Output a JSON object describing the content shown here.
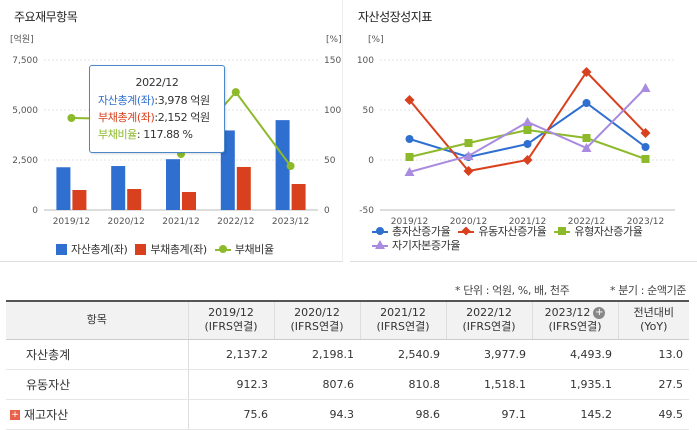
{
  "left_panel": {
    "title": "주요재무항목",
    "y_left_unit": "[억원]",
    "y_right_unit": "[%]",
    "tooltip": {
      "title": "2022/12",
      "rows": [
        {
          "label": "자산총계(좌)",
          "value": ":3,978 억원",
          "color": "#2f6fd0"
        },
        {
          "label": "부채총계(좌)",
          "value": ":2,152 억원",
          "color": "#d9411e"
        },
        {
          "label": "부채비율",
          "value": ": 117.88 %",
          "color": "#8dba2a"
        }
      ]
    },
    "legend": [
      "자산총계(좌)",
      "부채총계(좌)",
      "부채비율"
    ]
  },
  "right_panel": {
    "title": "자산성장성지표",
    "y_unit": "[%]",
    "legend": [
      "총자산증가율",
      "유동자산증가율",
      "유형자산증가율",
      "자기자본증가율"
    ]
  },
  "chart_data": [
    {
      "type": "bar",
      "title": "주요재무항목",
      "categories": [
        "2019/12",
        "2020/12",
        "2021/12",
        "2022/12",
        "2023/12"
      ],
      "ylim_left": [
        0,
        7500
      ],
      "yticks_left": [
        "7,500",
        "5,000",
        "2,500",
        "0"
      ],
      "ylim_right": [
        0,
        150
      ],
      "yticks_right": [
        "150",
        "100",
        "50",
        "0"
      ],
      "series": [
        {
          "name": "자산총계(좌)",
          "kind": "bar",
          "axis": "left",
          "color": "#2f6fd0",
          "values": [
            2137.2,
            2198.1,
            2540.9,
            3977.9,
            4493.9
          ]
        },
        {
          "name": "부채총계(좌)",
          "kind": "bar",
          "axis": "left",
          "color": "#d9411e",
          "values": [
            1000,
            1050,
            900,
            2152,
            1300
          ]
        },
        {
          "name": "부채비율",
          "kind": "line",
          "axis": "right",
          "color": "#8dba2a",
          "values": [
            92,
            91,
            56,
            117.88,
            44
          ]
        }
      ],
      "grid": true
    },
    {
      "type": "line",
      "title": "자산성장성지표",
      "categories": [
        "2019/12",
        "2020/12",
        "2021/12",
        "2022/12",
        "2023/12"
      ],
      "ylim": [
        -50,
        100
      ],
      "yticks": [
        "100",
        "50",
        "0",
        "-50"
      ],
      "series": [
        {
          "name": "총자산증가율",
          "color": "#2f6fd0",
          "marker": "circle",
          "values": [
            21,
            3,
            16,
            57,
            13
          ]
        },
        {
          "name": "유동자산증가율",
          "color": "#d9411e",
          "marker": "diamond",
          "values": [
            60,
            -11,
            0,
            88,
            27
          ]
        },
        {
          "name": "유형자산증가율",
          "color": "#8dba2a",
          "marker": "square",
          "values": [
            3,
            17,
            30,
            22,
            1
          ]
        },
        {
          "name": "자기자본증가율",
          "color": "#a98be0",
          "marker": "triangle",
          "values": [
            -12,
            4,
            38,
            12,
            72
          ]
        }
      ],
      "grid": true
    }
  ],
  "notes": {
    "unit": "* 단위 : 억원, %, 배, 천주",
    "period": "* 분기 : 순액기준"
  },
  "table": {
    "header_item": "항목",
    "columns": [
      {
        "period": "2019/12",
        "basis": "(IFRS연결)"
      },
      {
        "period": "2020/12",
        "basis": "(IFRS연결)"
      },
      {
        "period": "2021/12",
        "basis": "(IFRS연결)"
      },
      {
        "period": "2022/12",
        "basis": "(IFRS연결)"
      },
      {
        "period": "2023/12",
        "basis": "(IFRS연결)"
      }
    ],
    "yoy_label": "전년대비",
    "yoy_sub": "(YoY)",
    "rows": [
      {
        "label": "자산총계",
        "expandable": false,
        "values": [
          "2,137.2",
          "2,198.1",
          "2,540.9",
          "3,977.9",
          "4,493.9"
        ],
        "yoy": "13.0"
      },
      {
        "label": "유동자산",
        "expandable": false,
        "values": [
          "912.3",
          "807.6",
          "810.8",
          "1,518.1",
          "1,935.1"
        ],
        "yoy": "27.5"
      },
      {
        "label": "재고자산",
        "expandable": true,
        "values": [
          "75.6",
          "94.3",
          "98.6",
          "97.1",
          "145.2"
        ],
        "yoy": "49.5"
      }
    ]
  }
}
